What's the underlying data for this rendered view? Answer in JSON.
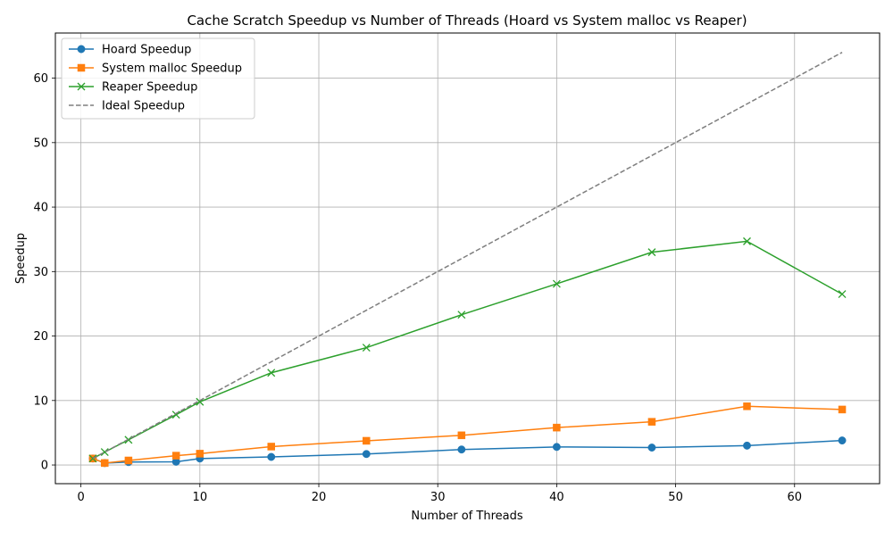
{
  "chart_data": {
    "type": "line",
    "title": "Cache Scratch Speedup vs Number of Threads (Hoard vs System malloc vs Reaper)",
    "xlabel": "Number of Threads",
    "ylabel": "Speedup",
    "xlim": [
      -2.15,
      67.15
    ],
    "ylim": [
      -2.9,
      67.0
    ],
    "xticks": [
      0,
      10,
      20,
      30,
      40,
      50,
      60
    ],
    "yticks": [
      0,
      10,
      20,
      30,
      40,
      50,
      60
    ],
    "grid": true,
    "legend_position": "top-left",
    "series": [
      {
        "name": "Hoard Speedup",
        "color": "#1f77b4",
        "marker": "circle",
        "linestyle": "solid",
        "x": [
          1,
          2,
          4,
          8,
          10,
          16,
          24,
          32,
          40,
          48,
          56,
          64
        ],
        "y": [
          1.0,
          0.3,
          0.45,
          0.5,
          1.0,
          1.25,
          1.7,
          2.4,
          2.8,
          2.7,
          3.0,
          3.8
        ]
      },
      {
        "name": "System malloc Speedup",
        "color": "#ff7f0e",
        "marker": "square",
        "linestyle": "solid",
        "x": [
          1,
          2,
          4,
          8,
          10,
          16,
          24,
          32,
          40,
          48,
          56,
          64
        ],
        "y": [
          1.0,
          0.3,
          0.7,
          1.45,
          1.75,
          2.85,
          3.75,
          4.6,
          5.8,
          6.7,
          9.1,
          8.6
        ]
      },
      {
        "name": "Reaper Speedup",
        "color": "#2ca02c",
        "marker": "x",
        "linestyle": "solid",
        "x": [
          1,
          2,
          4,
          8,
          10,
          16,
          24,
          32,
          40,
          48,
          56,
          64
        ],
        "y": [
          1.0,
          2.0,
          3.9,
          7.8,
          9.8,
          14.3,
          18.2,
          23.3,
          28.1,
          33.0,
          34.7,
          26.5
        ]
      },
      {
        "name": "Ideal Speedup",
        "color": "#7f7f7f",
        "marker": "none",
        "linestyle": "dashed",
        "x": [
          1,
          64
        ],
        "y": [
          1,
          64
        ]
      }
    ]
  }
}
